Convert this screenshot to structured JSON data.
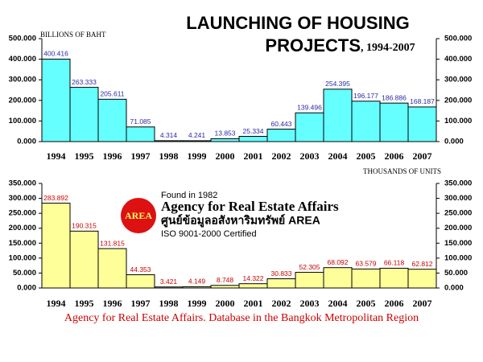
{
  "title": [
    "LAUNCHING OF HOUSING",
    "PROJECTS"
  ],
  "subtitle": ", 1994-2007",
  "logo": {
    "mark": "AREA",
    "founded": "Found in 1982",
    "name": "Agency for Real Estate Affairs",
    "thai_name": "ศูนย์ข้อมูลอสังหาริมทรัพย์ AREA",
    "certification": "ISO 9001-2000 Certified"
  },
  "footer": "Agency for Real Estate Affairs. Database in the Bangkok Metropolitan Region",
  "chart_data": [
    {
      "type": "bar",
      "y_label": "BILLIONS OF BAHT",
      "categories": [
        "1994",
        "1995",
        "1996",
        "1997",
        "1998",
        "1999",
        "2000",
        "2001",
        "2002",
        "2003",
        "2004",
        "2005",
        "2006",
        "2007"
      ],
      "values": [
        400.416,
        263.333,
        205.611,
        71.085,
        4.314,
        4.241,
        13.853,
        25.334,
        60.443,
        139.496,
        254.395,
        196.177,
        186.886,
        168.187
      ],
      "color": "#66ffff",
      "label_color": "#2a2aa8",
      "ylim": [
        0,
        500
      ],
      "yticks": [
        {
          "value": 0,
          "label": "0.000"
        },
        {
          "value": 100,
          "label": "100.000"
        },
        {
          "value": 200,
          "label": "200.000"
        },
        {
          "value": 300,
          "label": "300.000"
        },
        {
          "value": 400,
          "label": "400.000"
        },
        {
          "value": 500,
          "label": "500.000"
        }
      ]
    },
    {
      "type": "bar",
      "y_label": "THOUSANDS OF UNITS",
      "categories": [
        "1994",
        "1995",
        "1996",
        "1997",
        "1998",
        "1999",
        "2000",
        "2001",
        "2002",
        "2003",
        "2004",
        "2005",
        "2006",
        "2007"
      ],
      "values": [
        283.892,
        190.315,
        131.815,
        44.353,
        3.421,
        4.149,
        8.748,
        14.322,
        30.833,
        52.305,
        68.092,
        63.579,
        66.118,
        62.812
      ],
      "color": "#ffff99",
      "label_color": "#cc0000",
      "ylim": [
        0,
        350
      ],
      "yticks": [
        {
          "value": 0,
          "label": "0.000"
        },
        {
          "value": 50,
          "label": "50.000"
        },
        {
          "value": 100,
          "label": "100.000"
        },
        {
          "value": 150,
          "label": "150.000"
        },
        {
          "value": 200,
          "label": "200.000"
        },
        {
          "value": 250,
          "label": "250.000"
        },
        {
          "value": 300,
          "label": "300.000"
        },
        {
          "value": 350,
          "label": "350.000"
        }
      ]
    }
  ]
}
